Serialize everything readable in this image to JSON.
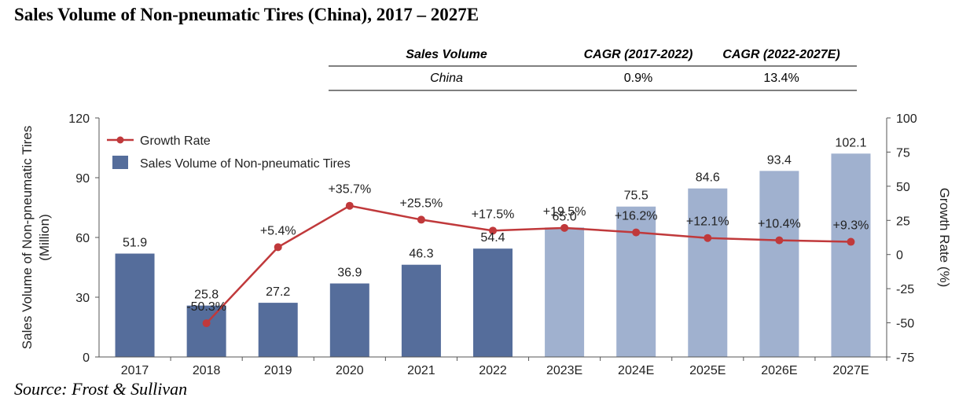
{
  "title": "Sales Volume of Non-pneumatic Tires (China), 2017 – 2027E",
  "source": "Source: Frost & Sullivan",
  "cagr_table": {
    "headers": [
      "Sales Volume",
      "CAGR (2017-2022)",
      "CAGR (2022-2027E)"
    ],
    "row": [
      "China",
      "0.9%",
      "13.4%"
    ]
  },
  "colors": {
    "bar_actual": "#556d9b",
    "bar_forecast": "#a0b1cf",
    "line": "#c0393b",
    "axis": "#555555"
  },
  "chart_data": {
    "type": "bar",
    "categories": [
      "2017",
      "2018",
      "2019",
      "2020",
      "2021",
      "2022",
      "2023E",
      "2024E",
      "2025E",
      "2026E",
      "2027E"
    ],
    "series": [
      {
        "name": "Sales Volume of Non-pneumatic Tires",
        "axis": "left",
        "values": [
          51.9,
          25.8,
          27.2,
          36.9,
          46.3,
          54.4,
          65.0,
          75.5,
          84.6,
          93.4,
          102.1
        ],
        "labels": [
          "51.9",
          "25.8",
          "27.2",
          "36.9",
          "46.3",
          "54.4",
          "65.0",
          "75.5",
          "84.6",
          "93.4",
          "102.1"
        ],
        "forecast_from_index": 6
      },
      {
        "name": "Growth Rate",
        "type": "line",
        "axis": "right",
        "values": [
          null,
          -50.3,
          5.4,
          35.7,
          25.5,
          17.5,
          19.5,
          16.2,
          12.1,
          10.4,
          9.3
        ],
        "labels": [
          "",
          "-50.3%",
          "+5.4%",
          "+35.7%",
          "+25.5%",
          "+17.5%",
          "+19.5%",
          "+16.2%",
          "+12.1%",
          "+10.4%",
          "+9.3%"
        ]
      }
    ],
    "ylabel": "Sales Volume of Non-pneumatic Tires",
    "ylabel_unit": "(Million)",
    "y2label": "Growth Rate (%)",
    "ylim": [
      0,
      120
    ],
    "yticks": [
      0,
      30,
      60,
      90,
      120
    ],
    "y2lim": [
      -75,
      100
    ],
    "y2ticks": [
      -75,
      -50,
      -25,
      0,
      25,
      50,
      75,
      100
    ],
    "legend": [
      "Growth Rate",
      "Sales Volume of Non-pneumatic Tires"
    ],
    "legend_position": "top-left"
  }
}
